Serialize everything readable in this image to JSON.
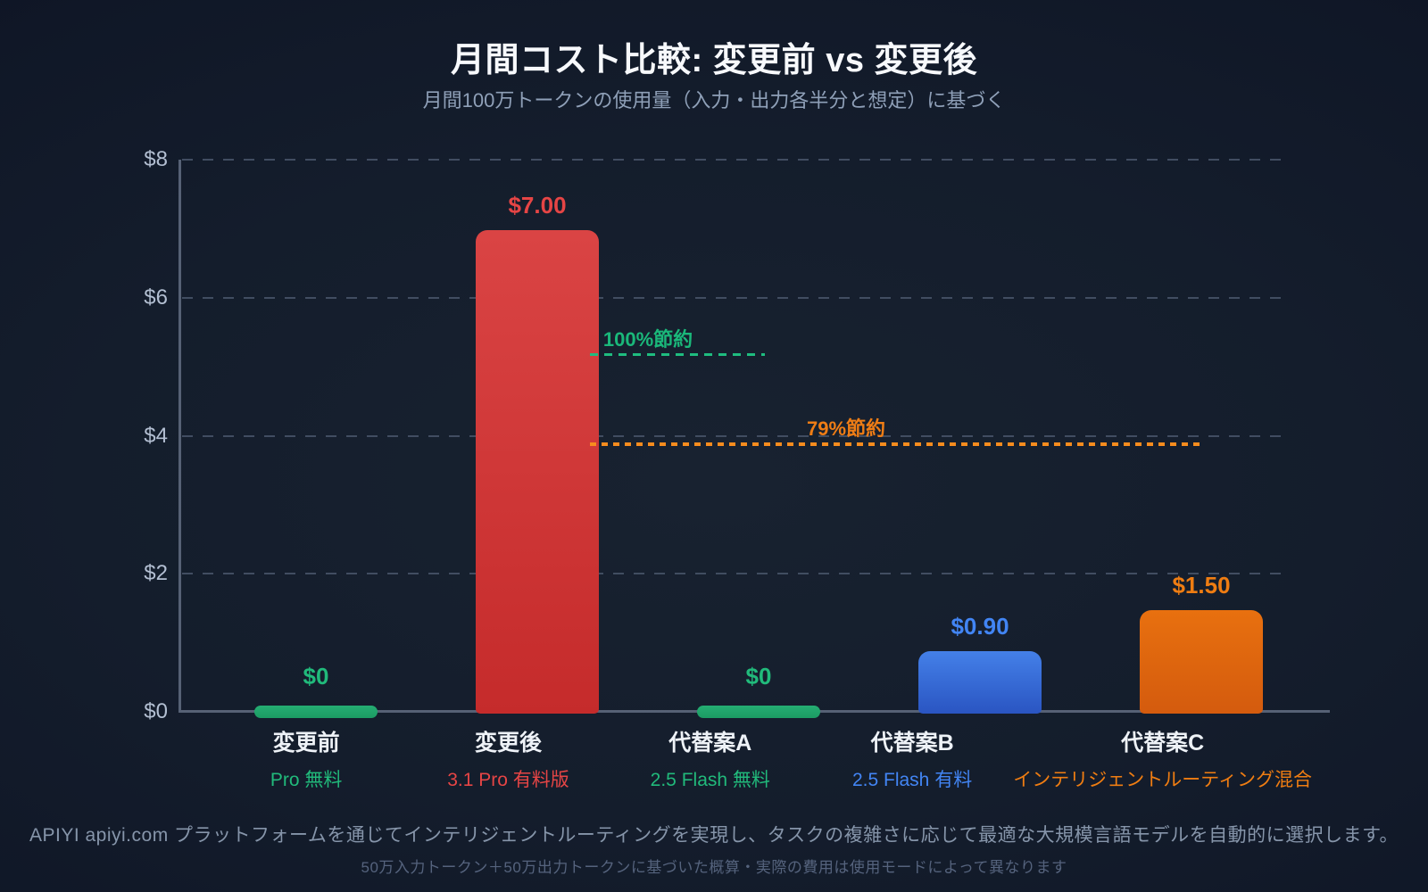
{
  "colors": {
    "background": "#141d2c",
    "title": "#f7f9fc",
    "subtitle": "#8fa0b8",
    "axis": "#566175",
    "gridline": "#414d61",
    "tick_label": "#b3bfd2",
    "category_label": "#eef2f7",
    "teal": "#1fa76c",
    "red": "#d83b3e",
    "blue": "#3b77e0",
    "orange": "#e2680f",
    "teal_text": "#21ba7b",
    "red_text": "#e64545",
    "blue_text": "#4285f4",
    "orange_text": "#ef7d12",
    "footer_text": "#8695aa",
    "footnote_text": "#55637d"
  },
  "chart_data": {
    "type": "bar",
    "title": "月間コスト比較: 変更前 vs 変更後",
    "subtitle": "月間100万トークンの使用量（入力・出力各半分と想定）に基づく",
    "xlabel": "",
    "ylabel": "",
    "ylim": [
      0,
      8
    ],
    "ytick_values": [
      0,
      2,
      4,
      6,
      8
    ],
    "ytick_labels": [
      "$0",
      "$2",
      "$4",
      "$6",
      "$8"
    ],
    "grid": "horizontal-dashed",
    "legend": "none",
    "categories": [
      "変更前",
      "変更後",
      "代替案A",
      "代替案B",
      "代替案C"
    ],
    "category_sublabels": [
      "Pro 無料",
      "3.1 Pro 有料版",
      "2.5 Flash 無料",
      "2.5 Flash 有料",
      "インテリジェントルーティング混合"
    ],
    "values": [
      0,
      7.0,
      0,
      0.9,
      1.5
    ],
    "value_labels": [
      "$0",
      "$7.00",
      "$0",
      "$0.90",
      "$1.50"
    ],
    "series_color_keys": [
      "teal",
      "red",
      "teal",
      "blue",
      "orange"
    ],
    "annotations": [
      {
        "label": "100%節約",
        "value_at": 5.2,
        "color_key": "teal"
      },
      {
        "label": "79%節約",
        "value_at": 3.9,
        "color_key": "orange"
      }
    ],
    "footer": "APIYI apiyi.com プラットフォームを通じてインテリジェントルーティングを実現し、タスクの複雑さに応じて最適な大規模言語モデルを自動的に選択します。",
    "footnote": "50万入力トークン＋50万出力トークンに基づいた概算・実際の費用は使用モードによって異なります"
  }
}
